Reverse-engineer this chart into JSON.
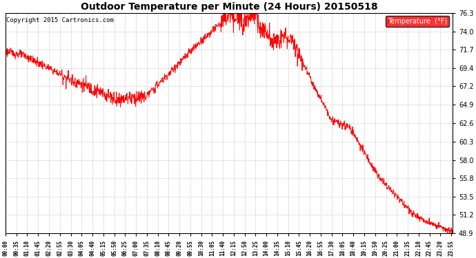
{
  "title": "Outdoor Temperature per Minute (24 Hours) 20150518",
  "copyright": "Copyright 2015 Cartronics.com",
  "legend_label": "Temperature  (°F)",
  "line_color": "red",
  "background_color": "white",
  "grid_color": "#aaaaaa",
  "ylim": [
    48.9,
    76.3
  ],
  "yticks": [
    48.9,
    51.2,
    53.5,
    55.8,
    58.0,
    60.3,
    62.6,
    64.9,
    67.2,
    69.4,
    71.7,
    74.0,
    76.3
  ],
  "xtick_interval_minutes": 35,
  "total_minutes": 1440,
  "figwidth": 6.9,
  "figheight": 3.75,
  "dpi": 100
}
